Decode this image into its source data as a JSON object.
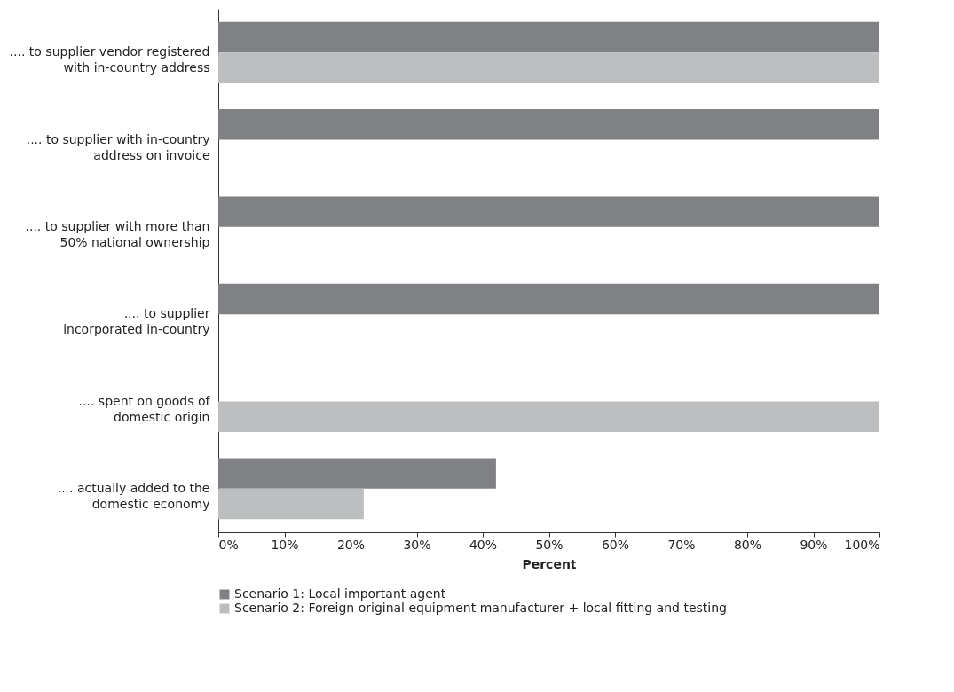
{
  "chart_data": {
    "type": "bar",
    "orientation": "horizontal",
    "xlabel": "Percent",
    "categories": [
      ".... to supplier vendor registered\nwith in-country address",
      ".... to supplier with in-country\naddress on invoice",
      ".... to supplier with more than\n50% national ownership",
      ".... to supplier\nincorporated in-country",
      ".... spent on goods of\ndomestic origin",
      ".... actually added to the\ndomestic economy"
    ],
    "series": [
      {
        "name": "Scenario 1: Local important agent",
        "color": "#808184",
        "values": [
          100,
          100,
          100,
          100,
          0,
          42
        ]
      },
      {
        "name": "Scenario 2: Foreign original equipment manufacturer + local fitting and testing",
        "color": "#bcbec0",
        "values": [
          100,
          0,
          0,
          0,
          100,
          22
        ]
      }
    ],
    "xlim": [
      0,
      100
    ],
    "xticks": [
      {
        "value": 0,
        "label": "0%"
      },
      {
        "value": 10,
        "label": "10%"
      },
      {
        "value": 20,
        "label": "20%"
      },
      {
        "value": 30,
        "label": "30%"
      },
      {
        "value": 40,
        "label": "40%"
      },
      {
        "value": 50,
        "label": "50%"
      },
      {
        "value": 60,
        "label": "60%"
      },
      {
        "value": 70,
        "label": "70%"
      },
      {
        "value": 80,
        "label": "80%"
      },
      {
        "value": 90,
        "label": "90%"
      },
      {
        "value": 100,
        "label": "100%"
      }
    ],
    "grid": false,
    "legend": "bottom"
  }
}
